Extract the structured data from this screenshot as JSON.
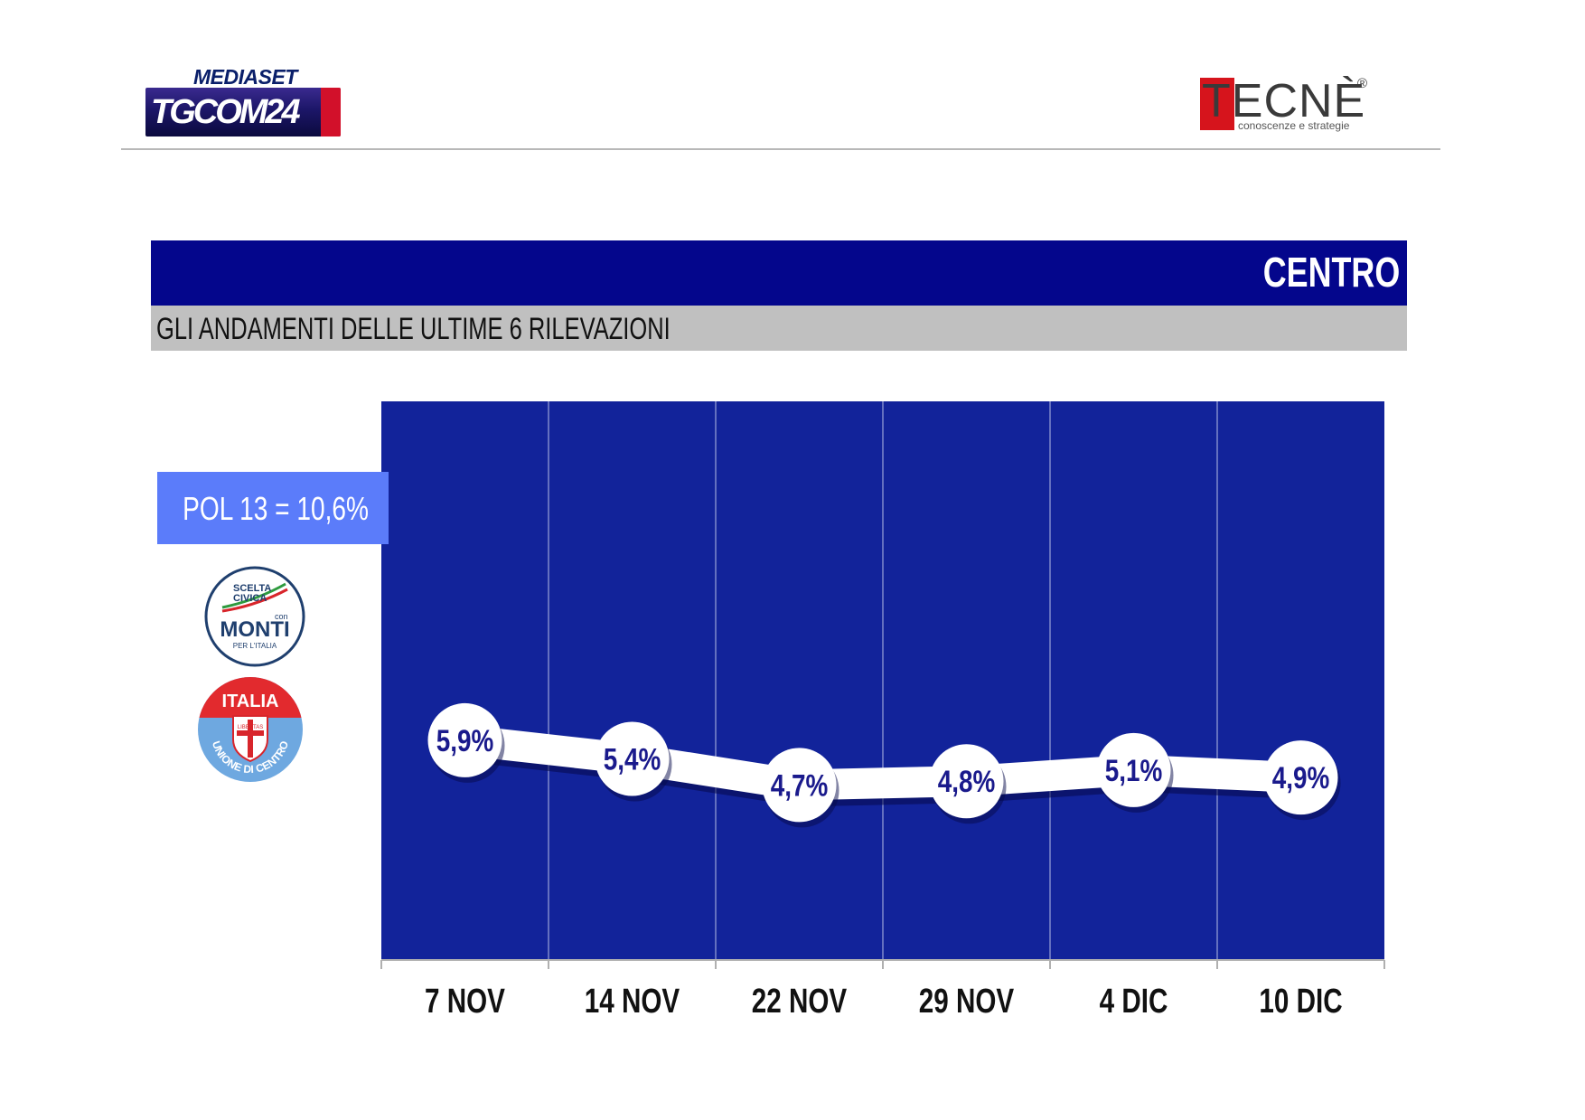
{
  "header": {
    "mediaset": "MEDIASET",
    "tgcom": "TGCOM24",
    "tecne": "TECNÈ",
    "tecne_reg": "®",
    "tecne_tagline": "conoscenze e strategie"
  },
  "section_title": "CENTRO",
  "subtitle": "GLI ANDAMENTI DELLE ULTIME 6 RILEVAZIONI",
  "pol_box": "POL 13 = 10,6%",
  "logos": {
    "scelta_civica": {
      "line1": "SCELTA",
      "line2": "CIVICA",
      "con": "con",
      "monti": "MONTI",
      "per": "PER L'ITALIA"
    },
    "udc": {
      "italia": "ITALIA",
      "libertas": "LIBERTAS",
      "ring": "UNIONE DI CENTRO"
    }
  },
  "colors": {
    "plot_bg": "#12239a",
    "title_bar": "#04068c",
    "pol_box": "#5b7cfa",
    "line": "#ffffff",
    "point_label": "#1a1a8c"
  },
  "chart_data": {
    "type": "line",
    "title": "",
    "xlabel": "",
    "ylabel": "",
    "categories": [
      "7 NOV",
      "14 NOV",
      "22 NOV",
      "29 NOV",
      "4 DIC",
      "10 DIC"
    ],
    "series": [
      {
        "values": [
          5.9,
          5.4,
          4.7,
          4.8,
          5.1,
          4.9
        ],
        "labels": [
          "5,9%",
          "5,4%",
          "4,7%",
          "4,8%",
          "5,1%",
          "4,9%"
        ]
      }
    ],
    "ylim": [
      0,
      15
    ],
    "grid": "vertical",
    "legend": "none"
  }
}
